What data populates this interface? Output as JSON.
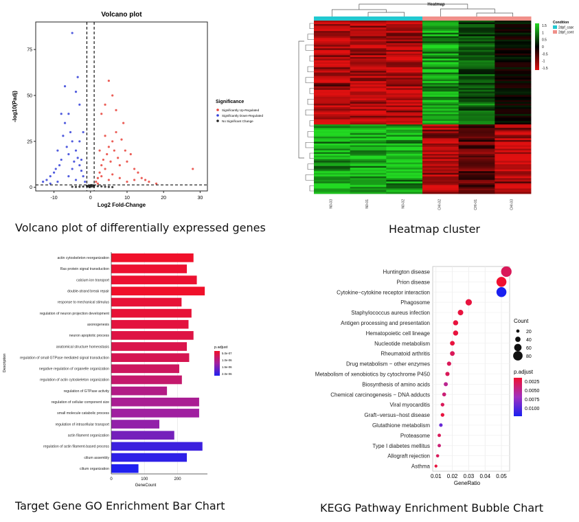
{
  "captions": {
    "volcano": "Volcano plot of differentially expressed genes",
    "heatmap": "Heatmap cluster",
    "go": "Target Gene GO Enrichment Bar Chart",
    "kegg": "KEGG Pathway Enrichment Bubble Chart"
  },
  "chart_data": [
    {
      "type": "scatter",
      "title": "Volcano plot",
      "xlabel": "Log2 Fold-Change",
      "ylabel": "-log10(Padj)",
      "xlim": [
        -15,
        32
      ],
      "ylim": [
        -2,
        90
      ],
      "xticks": [
        -10,
        0,
        10,
        20,
        30
      ],
      "yticks": [
        0,
        25,
        50,
        75
      ],
      "fc_thresholds": [
        -1,
        1
      ],
      "p_threshold": 1.3,
      "legend": {
        "title": "Significance",
        "position": "right",
        "entries": [
          {
            "label": "Significantly Up-Regulated",
            "color": "#e8423a"
          },
          {
            "label": "Significantly Down-Regulated",
            "color": "#3340d8"
          },
          {
            "label": "No Significant Change",
            "color": "#222222"
          }
        ]
      },
      "series": [
        {
          "name": "Significantly Up-Regulated",
          "color": "#e8423a",
          "points": [
            [
              1.5,
              3
            ],
            [
              2,
              5
            ],
            [
              2.5,
              8
            ],
            [
              3,
              12
            ],
            [
              3.5,
              15
            ],
            [
              4,
              10
            ],
            [
              4.5,
              18
            ],
            [
              5,
              22
            ],
            [
              5.5,
              14
            ],
            [
              6,
              25
            ],
            [
              6.5,
              20
            ],
            [
              7,
              30
            ],
            [
              7.5,
              16
            ],
            [
              8,
              12
            ],
            [
              8.5,
              26
            ],
            [
              9,
              35
            ],
            [
              9.5,
              20
            ],
            [
              10,
              14
            ],
            [
              11,
              18
            ],
            [
              12,
              10
            ],
            [
              13,
              8
            ],
            [
              14,
              5
            ],
            [
              15,
              4
            ],
            [
              3,
              40
            ],
            [
              4,
              45
            ],
            [
              5,
              58
            ],
            [
              6,
              50
            ],
            [
              7,
              42
            ],
            [
              2,
              2
            ],
            [
              3,
              6
            ],
            [
              5,
              4
            ],
            [
              6,
              7
            ],
            [
              8,
              5
            ],
            [
              10,
              3
            ],
            [
              12,
              4
            ],
            [
              2.5,
              20
            ],
            [
              4,
              28
            ],
            [
              28,
              10
            ],
            [
              16,
              3
            ],
            [
              18,
              2
            ]
          ]
        },
        {
          "name": "Significantly Down-Regulated",
          "color": "#3340d8",
          "points": [
            [
              -1.5,
              3
            ],
            [
              -2,
              6
            ],
            [
              -2.5,
              9
            ],
            [
              -3,
              12
            ],
            [
              -3.5,
              16
            ],
            [
              -4,
              20
            ],
            [
              -4.5,
              14
            ],
            [
              -5,
              25
            ],
            [
              -5.5,
              30
            ],
            [
              -6,
              18
            ],
            [
              -6.5,
              22
            ],
            [
              -7,
              35
            ],
            [
              -7.5,
              28
            ],
            [
              -8,
              15
            ],
            [
              -8.5,
              12
            ],
            [
              -9,
              20
            ],
            [
              -9.5,
              10
            ],
            [
              -10,
              8
            ],
            [
              -11,
              6
            ],
            [
              -12,
              4
            ],
            [
              -13,
              3
            ],
            [
              -5,
              84
            ],
            [
              -7,
              55
            ],
            [
              -4,
              52
            ],
            [
              -3,
              45
            ],
            [
              -6,
              40
            ],
            [
              -2,
              30
            ],
            [
              -3.5,
              60
            ],
            [
              -8,
              40
            ],
            [
              -2.5,
              15
            ],
            [
              -4,
              4
            ],
            [
              -6,
              6
            ],
            [
              -9,
              3
            ],
            [
              -11,
              2
            ],
            [
              -3,
              25
            ],
            [
              -5,
              10
            ]
          ]
        },
        {
          "name": "No Significant Change",
          "color": "#222222",
          "points": [
            [
              -0.8,
              0.5
            ],
            [
              -0.5,
              1
            ],
            [
              -0.3,
              0.2
            ],
            [
              0,
              0.8
            ],
            [
              0.3,
              0.4
            ],
            [
              0.6,
              1.1
            ],
            [
              0.9,
              0.3
            ],
            [
              -1,
              0.7
            ],
            [
              1,
              0.9
            ],
            [
              -2,
              0.4
            ],
            [
              2,
              0.6
            ],
            [
              -3,
              0.3
            ],
            [
              3,
              0.5
            ],
            [
              -4,
              0.2
            ],
            [
              4,
              0.3
            ],
            [
              0.2,
              1.2
            ],
            [
              -0.2,
              0.1
            ],
            [
              5,
              0.2
            ],
            [
              -5,
              0.3
            ],
            [
              6,
              0.1
            ]
          ]
        }
      ]
    },
    {
      "type": "heatmap",
      "title": "Heatmap",
      "columns": [
        "N0-03",
        "N0-01",
        "N0-02",
        "CHI-02",
        "CHI-01",
        "CHI-03"
      ],
      "condition_colors": [
        "#22c8d0",
        "#22c8d0",
        "#22c8d0",
        "#f0908a",
        "#f0908a",
        "#f0908a"
      ],
      "legend": {
        "title": "Condition",
        "entries": [
          {
            "label": "2dpf_case",
            "color": "#22c8d0"
          },
          {
            "label": "2dpf_control",
            "color": "#f0908a"
          }
        ],
        "colorbar_ticks": [
          "1.5",
          "1",
          "0.5",
          "0",
          "-0.5",
          "-1",
          "-1.5"
        ],
        "colorbar_range": [
          -1.5,
          1.5
        ]
      },
      "row_groups": [
        {
          "rows": 60,
          "pattern": [
            -1,
            -1,
            -1,
            1,
            0.5,
            0
          ]
        },
        {
          "rows": 40,
          "pattern": [
            1,
            1,
            1,
            -1,
            -0.5,
            -1
          ]
        }
      ]
    },
    {
      "type": "bar",
      "orientation": "horizontal",
      "xlabel": "GeneCount",
      "ylabel": "Description",
      "xticks": [
        0,
        100,
        200
      ],
      "xlim": [
        0,
        290
      ],
      "legend": {
        "title": "p.adjust",
        "ticks": [
          "5.0e-07",
          "1.0e-06",
          "1.5e-06",
          "2.0e-06"
        ],
        "range": [
          5e-07,
          2e-06
        ]
      },
      "categories": [
        "actin cytoskeleton reorganization",
        "Ras protein signal transduction",
        "calcium ion transport",
        "double-strand break repair",
        "response to mechanical stimulus",
        "regulation of neuron projection development",
        "axonogenesis",
        "neuron apoptotic process",
        "anatomical structure homeostasis",
        "regulation of small GTPase mediated signal transduction",
        "negative regulation of organelle organization",
        "regulation of actin cytoskeleton organization",
        "regulation of GTPase activity",
        "regulation of cellular component size",
        "small molecule catabolic process",
        "regulation of intracellular transport",
        "actin filament organization",
        "regulation of actin filament-based process",
        "cilium assembly",
        "cilium organization"
      ],
      "values": [
        248,
        228,
        258,
        282,
        212,
        242,
        233,
        248,
        228,
        235,
        205,
        213,
        168,
        265,
        265,
        145,
        190,
        275,
        228,
        82
      ],
      "padj": [
        3e-07,
        3.5e-07,
        3.5e-07,
        3e-07,
        4e-07,
        4e-07,
        4.5e-07,
        5e-07,
        5.5e-07,
        6e-07,
        7e-07,
        8e-07,
        1e-06,
        1.1e-06,
        1.2e-06,
        1.3e-06,
        1.5e-06,
        1.9e-06,
        2e-06,
        2.1e-06
      ]
    },
    {
      "type": "scatter",
      "subtype": "bubble",
      "xlabel": "GeneRatio",
      "xticks": [
        0.01,
        0.02,
        0.03,
        0.04,
        0.05
      ],
      "xlim": [
        0.008,
        0.055
      ],
      "legend_size": {
        "title": "Count",
        "values": [
          20,
          40,
          60,
          80
        ]
      },
      "legend_color": {
        "title": "p.adjust",
        "ticks": [
          "0.0025",
          "0.0050",
          "0.0075",
          "0.0100"
        ],
        "range": [
          0.0005,
          0.011
        ]
      },
      "categories": [
        "Huntington disease",
        "Prion disease",
        "Cytokine−cytokine receptor interaction",
        "Phagosome",
        "Staphylococcus aureus infection",
        "Antigen processing and presentation",
        "Hematopoietic cell lineage",
        "Nucleotide metabolism",
        "Rheumatoid arthritis",
        "Drug metabolism − other enzymes",
        "Metabolism of xenobiotics by cytochrome P450",
        "Biosynthesis of amino acids",
        "Chemical carcinogenesis − DNA adducts",
        "Viral myocarditis",
        "Graft−versus−host disease",
        "Glutathione metabolism",
        "Proteasome",
        "Type I diabetes mellitus",
        "Allograft rejection",
        "Asthma"
      ],
      "gene_ratio": [
        0.053,
        0.05,
        0.05,
        0.03,
        0.025,
        0.022,
        0.022,
        0.02,
        0.02,
        0.018,
        0.017,
        0.016,
        0.015,
        0.014,
        0.014,
        0.013,
        0.012,
        0.012,
        0.011,
        0.01
      ],
      "count": [
        90,
        85,
        85,
        50,
        42,
        38,
        38,
        34,
        34,
        30,
        29,
        28,
        26,
        24,
        24,
        22,
        21,
        21,
        19,
        17
      ],
      "padj": [
        0.002,
        0.0005,
        0.011,
        0.001,
        0.001,
        0.001,
        0.001,
        0.001,
        0.002,
        0.002,
        0.002,
        0.004,
        0.003,
        0.002,
        0.001,
        0.008,
        0.002,
        0.003,
        0.002,
        0.001
      ]
    }
  ]
}
